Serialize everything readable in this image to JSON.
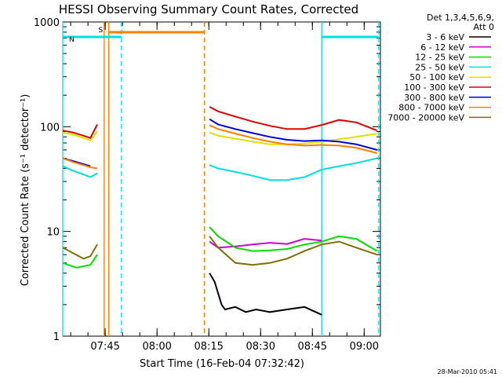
{
  "chart_data": {
    "type": "line",
    "title": "HESSI Observing Summary Count Rates, Corrected",
    "xlabel": "Start Time (16-Feb-04 07:32:42)",
    "ylabel": "Corrected Count Rate (s⁻¹ detector⁻¹)",
    "y_scale": "log",
    "ylim": [
      1,
      1000
    ],
    "xlim_minutes_after_start": [
      0,
      92
    ],
    "y_ticks": [
      {
        "value": 1,
        "label": "1"
      },
      {
        "value": 10,
        "label": "10"
      },
      {
        "value": 100,
        "label": "100"
      },
      {
        "value": 1000,
        "label": "1000"
      }
    ],
    "x_ticks": [
      {
        "minutes": 12.3,
        "label": "07:45"
      },
      {
        "minutes": 27.3,
        "label": "08:00"
      },
      {
        "minutes": 42.3,
        "label": "08:15"
      },
      {
        "minutes": 57.3,
        "label": "08:30"
      },
      {
        "minutes": 72.3,
        "label": "08:45"
      },
      {
        "minutes": 87.3,
        "label": "09:00"
      }
    ],
    "legend_header": [
      "Det 1,3,4,5,6,9,",
      "Att 0"
    ],
    "legend_placement": "right",
    "series": [
      {
        "name": "3 - 6 keV",
        "color": "#000000",
        "segments": [
          [
            [
              42.5,
              4
            ],
            [
              44,
              3.3
            ],
            [
              46,
              2
            ],
            [
              47,
              1.8
            ],
            [
              50,
              1.9
            ],
            [
              53,
              1.7
            ],
            [
              56,
              1.8
            ],
            [
              60,
              1.7
            ],
            [
              65,
              1.8
            ],
            [
              70,
              1.9
            ],
            [
              75,
              1.6
            ]
          ]
        ]
      },
      {
        "name": "6 - 12 keV",
        "color": "#d000d0",
        "segments": [
          [
            [
              42.5,
              8
            ],
            [
              45,
              7
            ],
            [
              50,
              7.2
            ],
            [
              55,
              7.5
            ],
            [
              60,
              7.8
            ],
            [
              65,
              7.6
            ],
            [
              70,
              8.5
            ],
            [
              75,
              8.2
            ]
          ]
        ]
      },
      {
        "name": "12 - 25 keV",
        "color": "#00e000",
        "segments": [
          [
            [
              0,
              5
            ],
            [
              4,
              4.5
            ],
            [
              8,
              4.8
            ],
            [
              10,
              6
            ]
          ],
          [
            [
              42.5,
              11
            ],
            [
              45,
              9
            ],
            [
              50,
              7
            ],
            [
              55,
              6.5
            ],
            [
              60,
              6.6
            ],
            [
              65,
              6.8
            ],
            [
              70,
              7.5
            ],
            [
              75,
              8
            ],
            [
              80,
              9
            ],
            [
              85,
              8.5
            ],
            [
              91,
              6.5
            ]
          ]
        ]
      },
      {
        "name": "25 - 50 keV",
        "color": "#00e0e0",
        "segments": [
          [
            [
              0,
              42
            ],
            [
              3,
              38
            ],
            [
              6,
              35
            ],
            [
              8,
              33
            ],
            [
              10,
              36
            ]
          ],
          [
            [
              42.5,
              43
            ],
            [
              45,
              40
            ],
            [
              50,
              37
            ],
            [
              55,
              34
            ],
            [
              60,
              31
            ],
            [
              65,
              31
            ],
            [
              70,
              33
            ],
            [
              75,
              39
            ],
            [
              80,
              42
            ],
            [
              85,
              45
            ],
            [
              91,
              50
            ]
          ]
        ]
      },
      {
        "name": "50 - 100 keV",
        "color": "#e0e000",
        "segments": [
          [
            [
              0,
              88
            ],
            [
              3,
              84
            ],
            [
              6,
              78
            ],
            [
              8,
              74
            ],
            [
              10,
              90
            ]
          ],
          [
            [
              42.5,
              88
            ],
            [
              45,
              82
            ],
            [
              50,
              77
            ],
            [
              55,
              72
            ],
            [
              60,
              68
            ],
            [
              65,
              68
            ],
            [
              70,
              69
            ],
            [
              75,
              72
            ],
            [
              80,
              76
            ],
            [
              85,
              80
            ],
            [
              91,
              86
            ]
          ]
        ]
      },
      {
        "name": "100 - 300 keV",
        "color": "#e00000",
        "segments": [
          [
            [
              0,
              92
            ],
            [
              3,
              88
            ],
            [
              6,
              82
            ],
            [
              8,
              78
            ],
            [
              10,
              105
            ]
          ],
          [
            [
              42.5,
              155
            ],
            [
              45,
              140
            ],
            [
              50,
              125
            ],
            [
              55,
              112
            ],
            [
              60,
              102
            ],
            [
              65,
              95
            ],
            [
              70,
              95
            ],
            [
              75,
              104
            ],
            [
              80,
              116
            ],
            [
              85,
              110
            ],
            [
              91,
              92
            ]
          ]
        ]
      },
      {
        "name": "300 - 800 keV",
        "color": "#0000e0",
        "segments": [
          [
            [
              0,
              50
            ],
            [
              3,
              47
            ],
            [
              6,
              44
            ],
            [
              8,
              42
            ]
          ],
          [
            [
              42.5,
              118
            ],
            [
              45,
              105
            ],
            [
              50,
              95
            ],
            [
              55,
              87
            ],
            [
              60,
              80
            ],
            [
              65,
              75
            ],
            [
              70,
              73
            ],
            [
              75,
              74
            ],
            [
              80,
              72
            ],
            [
              85,
              68
            ],
            [
              91,
              60
            ]
          ]
        ]
      },
      {
        "name": "800 - 7000 keV",
        "color": "#ff8000",
        "segments": [
          [
            [
              0,
              50
            ],
            [
              3,
              46
            ],
            [
              6,
              43
            ],
            [
              8,
              41
            ],
            [
              10,
              40
            ]
          ],
          [
            [
              42.5,
              103
            ],
            [
              45,
              95
            ],
            [
              50,
              86
            ],
            [
              55,
              78
            ],
            [
              60,
              72
            ],
            [
              65,
              68
            ],
            [
              70,
              66
            ],
            [
              75,
              67
            ],
            [
              80,
              66
            ],
            [
              85,
              63
            ],
            [
              91,
              56
            ]
          ]
        ]
      },
      {
        "name": "7000 - 20000 keV",
        "color": "#807000",
        "segments": [
          [
            [
              0,
              7
            ],
            [
              3,
              6.2
            ],
            [
              6,
              5.5
            ],
            [
              8,
              5.8
            ],
            [
              10,
              7.5
            ]
          ],
          [
            [
              42.5,
              9
            ],
            [
              45,
              7
            ],
            [
              50,
              5
            ],
            [
              55,
              4.8
            ],
            [
              60,
              5
            ],
            [
              65,
              5.5
            ],
            [
              70,
              6.5
            ],
            [
              75,
              7.5
            ],
            [
              80,
              8
            ],
            [
              85,
              7
            ],
            [
              91,
              6
            ]
          ]
        ]
      }
    ],
    "annotations": [
      {
        "label": "S",
        "color": "#ff8000",
        "from_minutes": 13.3,
        "to_minutes": 41
      },
      {
        "label": "N",
        "color": "#00e0e0",
        "from_minutes": 0,
        "to_minutes": 17
      },
      {
        "label": "",
        "color": "#00e0e0",
        "from_minutes": 75,
        "to_minutes": 91.5
      }
    ],
    "vertical_markers": [
      {
        "minutes": 0,
        "color": "#00e0e0",
        "style": "solid"
      },
      {
        "minutes": 12,
        "color": "#ff8000",
        "style": "solid"
      },
      {
        "minutes": 13.3,
        "color": "#ff8000",
        "style": "solid"
      },
      {
        "minutes": 17,
        "color": "#00e0e0",
        "style": "dashed"
      },
      {
        "minutes": 41,
        "color": "#ff8000",
        "style": "dashed"
      },
      {
        "minutes": 75,
        "color": "#00e0e0",
        "style": "solid"
      },
      {
        "minutes": 91.5,
        "color": "#00e0e0",
        "style": "dashed"
      }
    ]
  },
  "footer": {
    "timestamp": "28-Mar-2010 05:41"
  }
}
